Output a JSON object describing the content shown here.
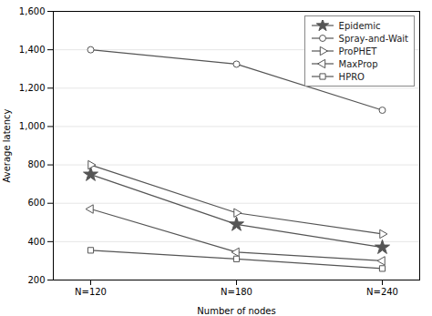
{
  "chart_data": {
    "type": "line",
    "xlabel": "Number of nodes",
    "ylabel": "Average latency",
    "categories": [
      "N=120",
      "N=180",
      "N=240"
    ],
    "series": [
      {
        "name": "Epidemic",
        "color": "#555555",
        "marker": "star",
        "line_style": "solid",
        "values": [
          750,
          490,
          370
        ]
      },
      {
        "name": "Spray-and-Wait",
        "color": "#555555",
        "marker": "circle",
        "line_style": "solid",
        "values": [
          1400,
          1325,
          1085
        ]
      },
      {
        "name": "ProPHET",
        "color": "#555555",
        "marker": "triangle-right",
        "line_style": "solid",
        "values": [
          800,
          550,
          440
        ]
      },
      {
        "name": "MaxProp",
        "color": "#555555",
        "marker": "triangle-left",
        "line_style": "solid",
        "values": [
          570,
          345,
          300
        ]
      },
      {
        "name": "HPRO",
        "color": "#555555",
        "marker": "square",
        "line_style": "solid",
        "values": [
          355,
          310,
          260
        ]
      }
    ],
    "ylim": [
      200,
      1600
    ],
    "yticks": [
      200,
      400,
      600,
      800,
      1000,
      1200,
      1400,
      1600
    ],
    "grid": true,
    "legend": "upper right"
  }
}
